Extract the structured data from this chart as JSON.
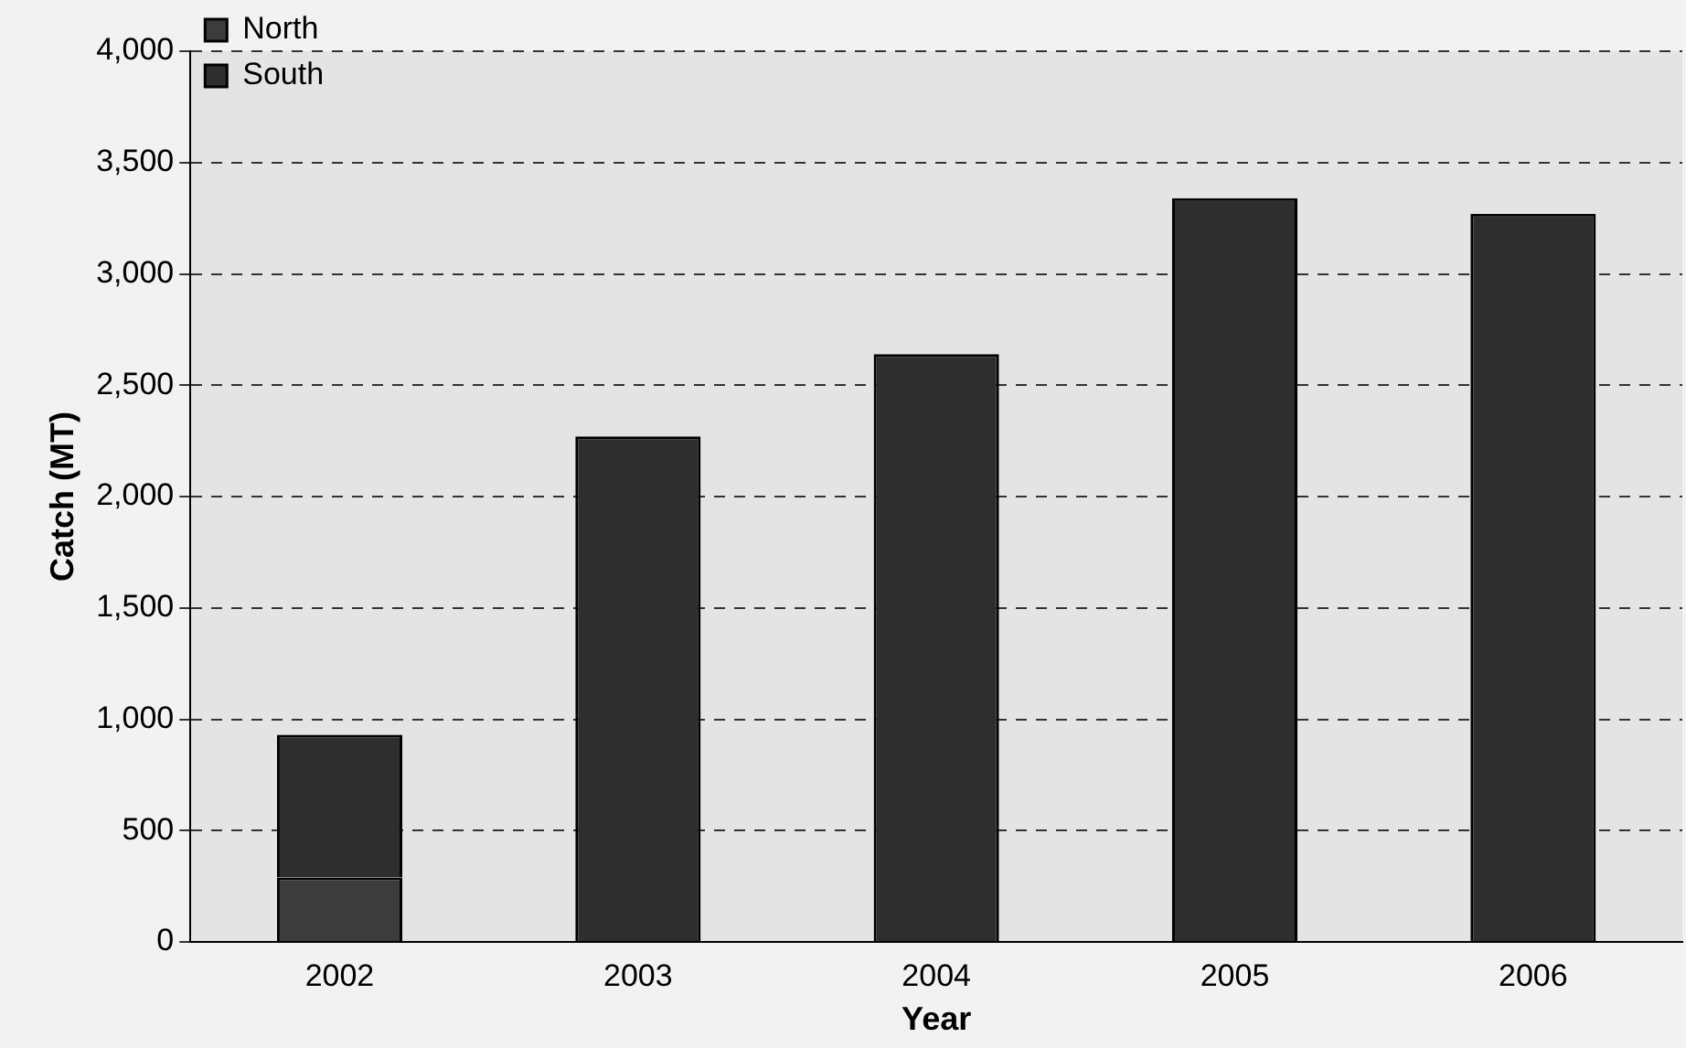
{
  "chart_data": {
    "type": "bar",
    "xlabel": "Year",
    "ylabel": "Catch (MT)",
    "categories": [
      "2002",
      "2003",
      "2004",
      "2005",
      "2006"
    ],
    "stacked": true,
    "series": [
      {
        "name": "North",
        "color": "#3c3c3c",
        "values": [
          290,
          null,
          null,
          null,
          null
        ]
      },
      {
        "name": "South",
        "color": "#2e2e2e",
        "values": [
          640,
          2270,
          2640,
          3340,
          3270
        ]
      }
    ],
    "ylim": [
      0,
      4000
    ],
    "yticks": [
      {
        "value": 0,
        "label": "0"
      },
      {
        "value": 500,
        "label": "500"
      },
      {
        "value": 1000,
        "label": "1,000"
      },
      {
        "value": 1500,
        "label": "1,500"
      },
      {
        "value": 2000,
        "label": "2,000"
      },
      {
        "value": 2500,
        "label": "2,500"
      },
      {
        "value": 3000,
        "label": "3,000"
      },
      {
        "value": 3500,
        "label": "3,500"
      },
      {
        "value": 4000,
        "label": "4,000"
      }
    ],
    "grid": "y",
    "legend": "top left"
  }
}
